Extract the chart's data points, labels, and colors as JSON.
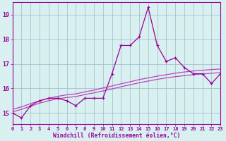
{
  "hours": [
    0,
    1,
    2,
    3,
    4,
    5,
    6,
    7,
    8,
    9,
    10,
    11,
    12,
    13,
    14,
    15,
    16,
    17,
    18,
    19,
    20,
    21,
    22,
    23
  ],
  "windchill": [
    15.0,
    14.8,
    15.3,
    15.5,
    15.6,
    15.6,
    15.5,
    15.3,
    15.6,
    15.6,
    15.6,
    16.6,
    17.75,
    17.75,
    18.1,
    19.3,
    17.75,
    17.1,
    17.25,
    16.85,
    16.6,
    16.6,
    16.2,
    16.6
  ],
  "smooth1": [
    15.05,
    15.15,
    15.28,
    15.4,
    15.5,
    15.58,
    15.63,
    15.67,
    15.75,
    15.82,
    15.9,
    15.98,
    16.07,
    16.15,
    16.23,
    16.3,
    16.37,
    16.43,
    16.48,
    16.52,
    16.56,
    16.59,
    16.62,
    16.64
  ],
  "smooth2": [
    15.15,
    15.25,
    15.38,
    15.5,
    15.6,
    15.68,
    15.74,
    15.78,
    15.86,
    15.93,
    16.02,
    16.1,
    16.19,
    16.27,
    16.36,
    16.43,
    16.5,
    16.56,
    16.62,
    16.67,
    16.71,
    16.74,
    16.77,
    16.79
  ],
  "line_color": "#990099",
  "smooth_color": "#bb44bb",
  "bg_color": "#d8f0f0",
  "grid_color": "#a0b8c8",
  "xlabel": "Windchill (Refroidissement éolien,°C)",
  "ylabel_ticks": [
    15,
    16,
    17,
    18,
    19
  ],
  "xlim": [
    0,
    23
  ],
  "ylim": [
    14.55,
    19.5
  ]
}
